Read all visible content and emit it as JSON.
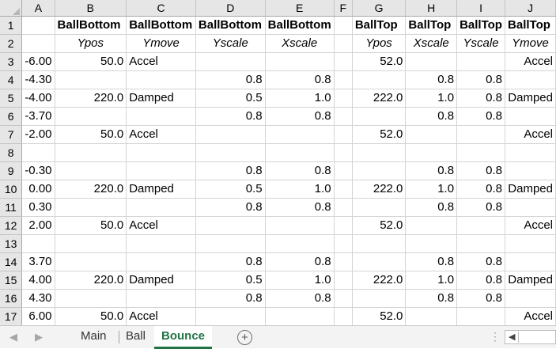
{
  "columns": [
    "A",
    "B",
    "C",
    "D",
    "E",
    "F",
    "G",
    "H",
    "I",
    "J"
  ],
  "rows": [
    {
      "num": "1",
      "cells": [
        "",
        "BallBottom",
        "BallBottom",
        "BallBottom",
        "BallBottom",
        "",
        "BallTop",
        "BallTop",
        "BallTop",
        "BallTop"
      ]
    },
    {
      "num": "2",
      "cells": [
        "",
        "Ypos",
        "Ymove",
        "Yscale",
        "Xscale",
        "",
        "Ypos",
        "Xscale",
        "Yscale",
        "Ymove"
      ]
    },
    {
      "num": "3",
      "cells": [
        "-6.00",
        "50.0",
        "Accel",
        "",
        "",
        "",
        "52.0",
        "",
        "",
        "Accel"
      ]
    },
    {
      "num": "4",
      "cells": [
        "-4.30",
        "",
        "",
        "0.8",
        "0.8",
        "",
        "",
        "0.8",
        "0.8",
        ""
      ]
    },
    {
      "num": "5",
      "cells": [
        "-4.00",
        "220.0",
        "Damped",
        "0.5",
        "1.0",
        "",
        "222.0",
        "1.0",
        "0.8",
        "Damped"
      ]
    },
    {
      "num": "6",
      "cells": [
        "-3.70",
        "",
        "",
        "0.8",
        "0.8",
        "",
        "",
        "0.8",
        "0.8",
        ""
      ]
    },
    {
      "num": "7",
      "cells": [
        "-2.00",
        "50.0",
        "Accel",
        "",
        "",
        "",
        "52.0",
        "",
        "",
        "Accel"
      ]
    },
    {
      "num": "8",
      "cells": [
        "",
        "",
        "",
        "",
        "",
        "",
        "",
        "",
        "",
        ""
      ]
    },
    {
      "num": "9",
      "cells": [
        "-0.30",
        "",
        "",
        "0.8",
        "0.8",
        "",
        "",
        "0.8",
        "0.8",
        ""
      ]
    },
    {
      "num": "10",
      "cells": [
        "0.00",
        "220.0",
        "Damped",
        "0.5",
        "1.0",
        "",
        "222.0",
        "1.0",
        "0.8",
        "Damped"
      ]
    },
    {
      "num": "11",
      "cells": [
        "0.30",
        "",
        "",
        "0.8",
        "0.8",
        "",
        "",
        "0.8",
        "0.8",
        ""
      ]
    },
    {
      "num": "12",
      "cells": [
        "2.00",
        "50.0",
        "Accel",
        "",
        "",
        "",
        "52.0",
        "",
        "",
        "Accel"
      ]
    },
    {
      "num": "13",
      "cells": [
        "",
        "",
        "",
        "",
        "",
        "",
        "",
        "",
        "",
        ""
      ]
    },
    {
      "num": "14",
      "cells": [
        "3.70",
        "",
        "",
        "0.8",
        "0.8",
        "",
        "",
        "0.8",
        "0.8",
        ""
      ]
    },
    {
      "num": "15",
      "cells": [
        "4.00",
        "220.0",
        "Damped",
        "0.5",
        "1.0",
        "",
        "222.0",
        "1.0",
        "0.8",
        "Damped"
      ]
    },
    {
      "num": "16",
      "cells": [
        "4.30",
        "",
        "",
        "0.8",
        "0.8",
        "",
        "",
        "0.8",
        "0.8",
        ""
      ]
    },
    {
      "num": "17",
      "cells": [
        "6.00",
        "50.0",
        "Accel",
        "",
        "",
        "",
        "52.0",
        "",
        "",
        "Accel"
      ]
    }
  ],
  "tabs": {
    "main": "Main",
    "ball": "Ball",
    "bounce": "Bounce",
    "add": "+"
  },
  "tabbar": {
    "nav_prev": "◀",
    "nav_next": "▶",
    "more": "⋮",
    "scroll_left": "◀"
  },
  "icons": {
    "add_sheet": "plus-circle-icon",
    "corner": "select-all-triangle-icon"
  },
  "colors": {
    "accent": "#217346",
    "header_bg": "#e6e6e6",
    "gridline": "#d4d4d4"
  }
}
